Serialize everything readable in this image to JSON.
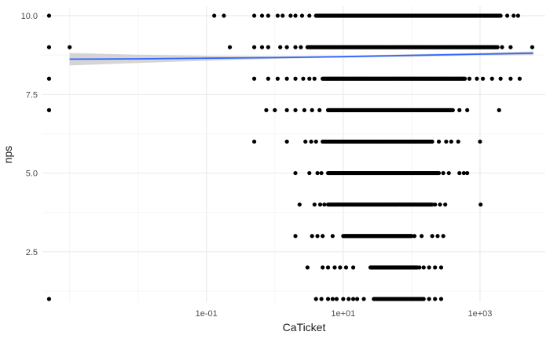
{
  "chart_data": {
    "type": "scatter",
    "xlabel": "CaTicket",
    "ylabel": "nps",
    "x_scale": "log10",
    "xlim": [
      0.0004,
      9000
    ],
    "ylim": [
      0.9,
      10.3
    ],
    "x_ticks": [
      {
        "value": 0.1,
        "label": "1e-01"
      },
      {
        "value": 10,
        "label": "1e+01"
      },
      {
        "value": 1000,
        "label": "1e+03"
      }
    ],
    "y_ticks": [
      {
        "value": 2.5,
        "label": "2.5"
      },
      {
        "value": 5.0,
        "label": "5.0"
      },
      {
        "value": 7.5,
        "label": "7.5"
      },
      {
        "value": 10.0,
        "label": "10.0"
      }
    ],
    "grid": true,
    "colors": {
      "points": "#000000",
      "fit_line": "#3366ff",
      "ribbon": "#bebebe",
      "grid_major": "#ebebeb",
      "grid_minor": "#f5f5f5"
    },
    "strips": [
      {
        "y": 10,
        "dense": [
          4,
          2000
        ],
        "sparse": [
          0.0005,
          0.13,
          0.18,
          0.5,
          0.65,
          0.8,
          1.1,
          1.3,
          1.7,
          2.0,
          2.5,
          3.2,
          2500,
          3100,
          3600
        ]
      },
      {
        "y": 9,
        "dense": [
          3,
          1800
        ],
        "sparse": [
          0.0005,
          0.001,
          0.22,
          0.5,
          0.65,
          0.8,
          1.2,
          1.5,
          2.0,
          2.4,
          2100,
          2800,
          5800
        ]
      },
      {
        "y": 8,
        "dense": [
          5,
          600
        ],
        "sparse": [
          0.0005,
          0.5,
          0.8,
          1.1,
          1.5,
          2.0,
          2.6,
          3.2,
          3.8,
          700,
          900,
          1100,
          1500,
          2000,
          2800,
          3800
        ]
      },
      {
        "y": 7,
        "dense": [
          6,
          400
        ],
        "sparse": [
          0.0005,
          0.75,
          1.0,
          1.5,
          2.0,
          2.7,
          3.5,
          4.5,
          500,
          650,
          1900
        ]
      },
      {
        "y": 6,
        "dense": [
          5,
          200
        ],
        "sparse": [
          0.5,
          1.5,
          2.8,
          3.4,
          4.0,
          250,
          320,
          380,
          480,
          1000
        ]
      },
      {
        "y": 5,
        "dense": [
          6,
          250
        ],
        "sparse": [
          2.0,
          3.2,
          4.2,
          4.8,
          290,
          350,
          500,
          580,
          650
        ]
      },
      {
        "y": 4,
        "dense": [
          6,
          200
        ],
        "sparse": [
          2.3,
          3.8,
          4.6,
          5.3,
          220,
          260,
          310,
          1020
        ]
      },
      {
        "y": 3,
        "dense": [
          10,
          100
        ],
        "sparse": [
          2.0,
          3.5,
          4.2,
          5.0,
          7.0,
          110,
          140,
          200,
          240,
          290
        ]
      },
      {
        "y": 2,
        "dense": [
          25,
          120
        ],
        "sparse": [
          3.0,
          5.0,
          6.0,
          7.5,
          9.0,
          11.0,
          14.0,
          130,
          150,
          180,
          220,
          270
        ]
      },
      {
        "y": 1,
        "dense": [
          28,
          150
        ],
        "sparse": [
          4.0,
          4.8,
          6.0,
          7.0,
          8.0,
          10.0,
          12.0,
          14.0,
          16.0,
          20.0,
          180,
          220,
          270
        ]
      }
    ],
    "extra_points": [
      {
        "x": 0.0005,
        "y": 1
      }
    ],
    "fit": {
      "method": "lm",
      "x": [
        0.001,
        0.01,
        0.1,
        1,
        10,
        100,
        1000,
        6000
      ],
      "y": [
        8.62,
        8.63,
        8.65,
        8.67,
        8.7,
        8.74,
        8.78,
        8.81
      ],
      "se_lower": [
        8.42,
        8.5,
        8.57,
        8.63,
        8.67,
        8.7,
        8.74,
        8.75
      ],
      "se_upper": [
        8.82,
        8.76,
        8.73,
        8.71,
        8.73,
        8.78,
        8.82,
        8.87
      ]
    }
  }
}
